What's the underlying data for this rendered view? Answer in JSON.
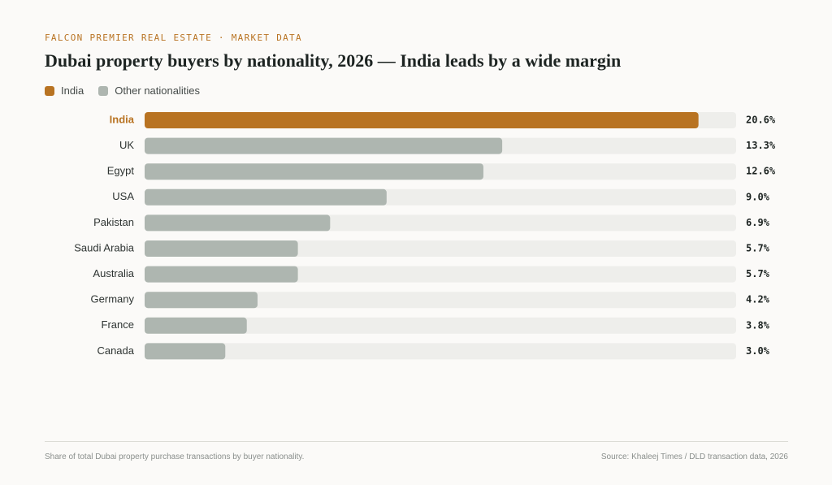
{
  "header": {
    "kicker": "FALCON PREMIER REAL ESTATE · MARKET DATA",
    "title": "Dubai property buyers by nationality, 2026 — India leads by a wide margin"
  },
  "legend": [
    {
      "label": "India",
      "color": "#b87322"
    },
    {
      "label": "Other nationalities",
      "color": "#aeb6b0"
    }
  ],
  "colors": {
    "highlight": "#b87322",
    "other": "#aeb6b0",
    "track": "#eeeeeb"
  },
  "chart_data": {
    "type": "bar",
    "orientation": "horizontal",
    "categories": [
      "India",
      "UK",
      "Egypt",
      "USA",
      "Pakistan",
      "Saudi Arabia",
      "Australia",
      "Germany",
      "France",
      "Canada"
    ],
    "values": [
      20.6,
      13.3,
      12.6,
      9.0,
      6.9,
      5.7,
      5.7,
      4.2,
      3.8,
      3.0
    ],
    "value_labels": [
      "20.6%",
      "13.3%",
      "12.6%",
      "9.0%",
      "6.9%",
      "5.7%",
      "5.7%",
      "4.2%",
      "3.8%",
      "3.0%"
    ],
    "highlight": "India",
    "xlim": [
      0,
      22
    ],
    "grid": false,
    "legend_position": "top-left"
  },
  "footer": {
    "note": "Share of total Dubai property purchase transactions by buyer nationality.",
    "source": "Source: Khaleej Times / DLD transaction data, 2026"
  }
}
